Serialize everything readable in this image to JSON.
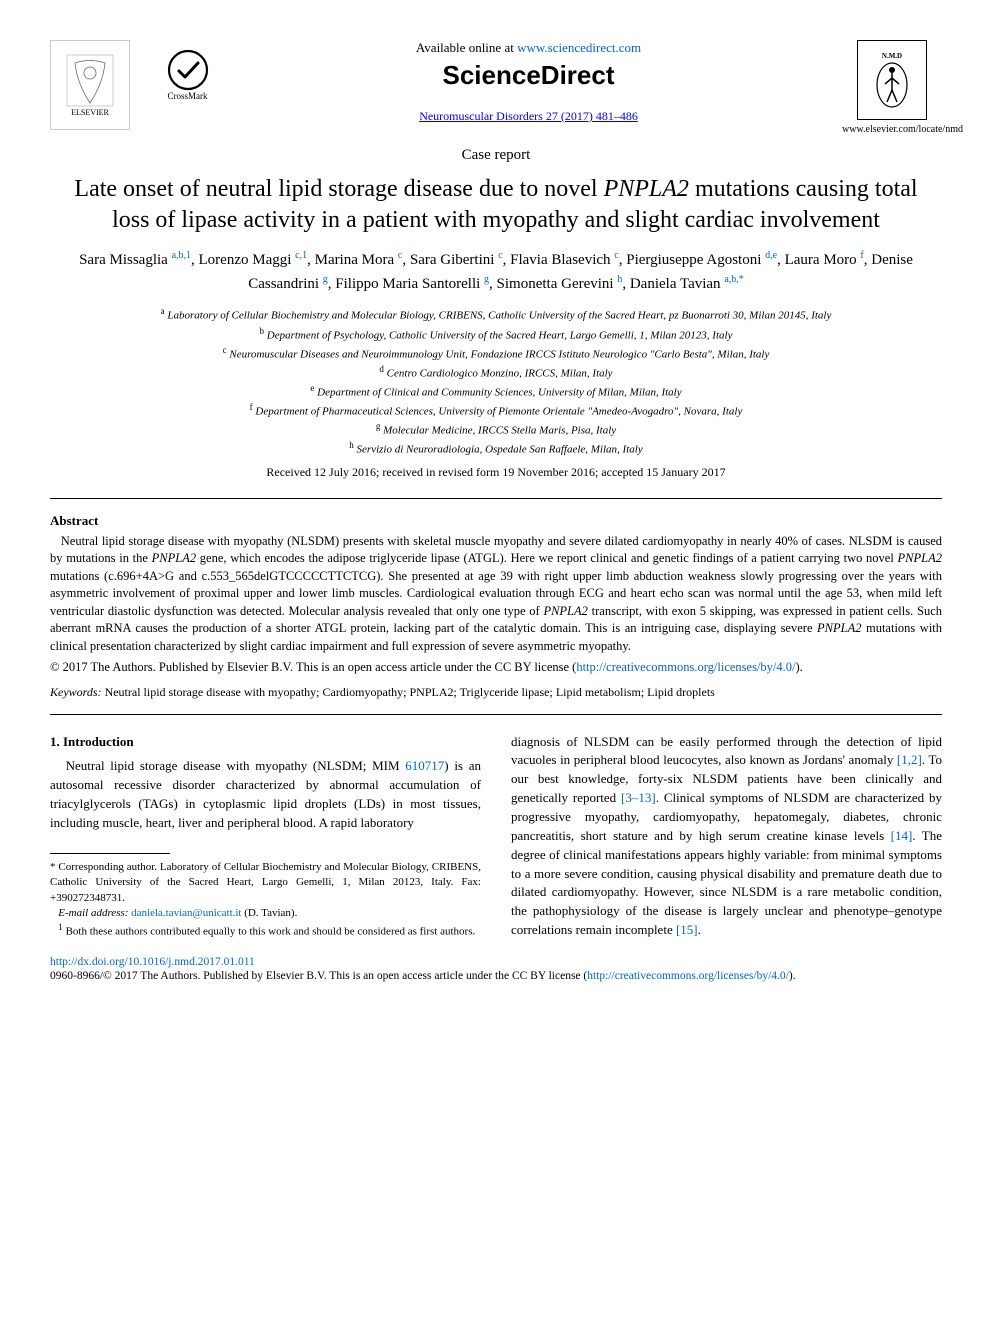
{
  "header": {
    "elsevier_label": "ELSEVIER",
    "crossmark_label": "CrossMark",
    "available_text": "Available online at ",
    "available_url": "www.sciencedirect.com",
    "brand": "ScienceDirect",
    "journal_ref": "Neuromuscular Disorders 27 (2017) 481–486",
    "nmd_label": "N.M.D",
    "journal_url": "www.elsevier.com/locate/nmd"
  },
  "article": {
    "type": "Case report",
    "title_html": "Late onset of neutral lipid storage disease due to novel <em>PNPLA2</em> mutations causing total loss of lipase activity in a patient with myopathy and slight cardiac involvement",
    "authors": [
      {
        "name": "Sara Missaglia",
        "aff": "a,b,1"
      },
      {
        "name": "Lorenzo Maggi",
        "aff": "c,1"
      },
      {
        "name": "Marina Mora",
        "aff": "c"
      },
      {
        "name": "Sara Gibertini",
        "aff": "c"
      },
      {
        "name": "Flavia Blasevich",
        "aff": "c"
      },
      {
        "name": "Piergiuseppe Agostoni",
        "aff": "d,e"
      },
      {
        "name": "Laura Moro",
        "aff": "f"
      },
      {
        "name": "Denise Cassandrini",
        "aff": "g"
      },
      {
        "name": "Filippo Maria Santorelli",
        "aff": "g"
      },
      {
        "name": "Simonetta Gerevini",
        "aff": "h"
      },
      {
        "name": "Daniela Tavian",
        "aff": "a,b,*"
      }
    ],
    "affiliations": [
      {
        "sup": "a",
        "text": "Laboratory of Cellular Biochemistry and Molecular Biology, CRIBENS, Catholic University of the Sacred Heart, pz Buonarroti 30, Milan 20145, Italy"
      },
      {
        "sup": "b",
        "text": "Department of Psychology, Catholic University of the Sacred Heart, Largo Gemelli, 1, Milan 20123, Italy"
      },
      {
        "sup": "c",
        "text": "Neuromuscular Diseases and Neuroimmunology Unit, Fondazione IRCCS Istituto Neurologico \"Carlo Besta\", Milan, Italy"
      },
      {
        "sup": "d",
        "text": "Centro Cardiologico Monzino, IRCCS, Milan, Italy"
      },
      {
        "sup": "e",
        "text": "Department of Clinical and Community Sciences, University of Milan, Milan, Italy"
      },
      {
        "sup": "f",
        "text": "Department of Pharmaceutical Sciences, University of Piemonte Orientale \"Amedeo-Avogadro\", Novara, Italy"
      },
      {
        "sup": "g",
        "text": "Molecular Medicine, IRCCS Stella Maris, Pisa, Italy"
      },
      {
        "sup": "h",
        "text": "Servizio di Neuroradiologia, Ospedale San Raffaele, Milan, Italy"
      }
    ],
    "received": "Received 12 July 2016; received in revised form 19 November 2016; accepted 15 January 2017"
  },
  "abstract": {
    "heading": "Abstract",
    "body_html": "Neutral lipid storage disease with myopathy (NLSDM) presents with skeletal muscle myopathy and severe dilated cardiomyopathy in nearly 40% of cases. NLSDM is caused by mutations in the <em>PNPLA2</em> gene, which encodes the adipose triglyceride lipase (ATGL). Here we report clinical and genetic findings of a patient carrying two novel <em>PNPLA2</em> mutations (c.696+4A>G and c.553_565delGTCCCCCTTCTCG). She presented at age 39 with right upper limb abduction weakness slowly progressing over the years with asymmetric involvement of proximal upper and lower limb muscles. Cardiological evaluation through ECG and heart echo scan was normal until the age 53, when mild left ventricular diastolic dysfunction was detected. Molecular analysis revealed that only one type of <em>PNPLA2</em> transcript, with exon 5 skipping, was expressed in patient cells. Such aberrant mRNA causes the production of a shorter ATGL protein, lacking part of the catalytic domain. This is an intriguing case, displaying severe <em>PNPLA2</em> mutations with clinical presentation characterized by slight cardiac impairment and full expression of severe asymmetric myopathy.",
    "license_prefix": "© 2017 The Authors. Published by Elsevier B.V. This is an open access article under the CC BY license (",
    "license_url": "http://creativecommons.org/licenses/by/4.0/",
    "license_suffix": ").",
    "keywords_label": "Keywords:",
    "keywords_text": " Neutral lipid storage disease with myopathy; Cardiomyopathy; PNPLA2; Triglyceride lipase; Lipid metabolism; Lipid droplets"
  },
  "body": {
    "section1_heading": "1.  Introduction",
    "col1_p1_a": "Neutral lipid storage disease with myopathy (NLSDM; MIM ",
    "col1_p1_link": "610717",
    "col1_p1_b": ") is an autosomal recessive disorder characterized by abnormal accumulation of triacylglycerols (TAGs) in cytoplasmic lipid droplets (LDs) in most tissues, including muscle, heart, liver and peripheral blood. A rapid laboratory",
    "col2_p1_a": "diagnosis of NLSDM can be easily performed through the detection of lipid vacuoles in peripheral blood leucocytes, also known as Jordans' anomaly ",
    "col2_ref1": "[1,2]",
    "col2_p1_b": ". To our best knowledge, forty-six NLSDM patients have been clinically and genetically reported ",
    "col2_ref2": "[3–13]",
    "col2_p1_c": ". Clinical symptoms of NLSDM are characterized by progressive myopathy, cardiomyopathy, hepatomegaly, diabetes, chronic pancreatitis, short stature and by high serum creatine kinase levels ",
    "col2_ref3": "[14]",
    "col2_p1_d": ". The degree of clinical manifestations appears highly variable: from minimal symptoms to a more severe condition, causing physical disability and premature death due to dilated cardiomyopathy. However, since NLSDM is a rare metabolic condition, the pathophysiology of the disease is largely unclear and phenotype–genotype correlations remain incomplete ",
    "col2_ref4": "[15]",
    "col2_p1_e": "."
  },
  "footnotes": {
    "corr": "* Corresponding author. Laboratory of Cellular Biochemistry and Molecular Biology, CRIBENS, Catholic University of the Sacred Heart, Largo Gemelli, 1, Milan 20123, Italy. Fax: +390272348731.",
    "email_label": "E-mail address:",
    "email": "daniela.tavian@unicatt.it",
    "email_name": " (D. Tavian).",
    "equal": "Both these authors contributed equally to this work and should be considered as first authors."
  },
  "footer": {
    "doi": "http://dx.doi.org/10.1016/j.nmd.2017.01.011",
    "issn_line_a": "0960-8966/© 2017 The Authors. Published by Elsevier B.V. This is an open access article under the CC BY license (",
    "issn_url": "http://creativecommons.org/licenses/by/4.0/",
    "issn_line_b": ")."
  },
  "colors": {
    "link": "#0066cc",
    "text": "#000000",
    "bg": "#ffffff"
  }
}
